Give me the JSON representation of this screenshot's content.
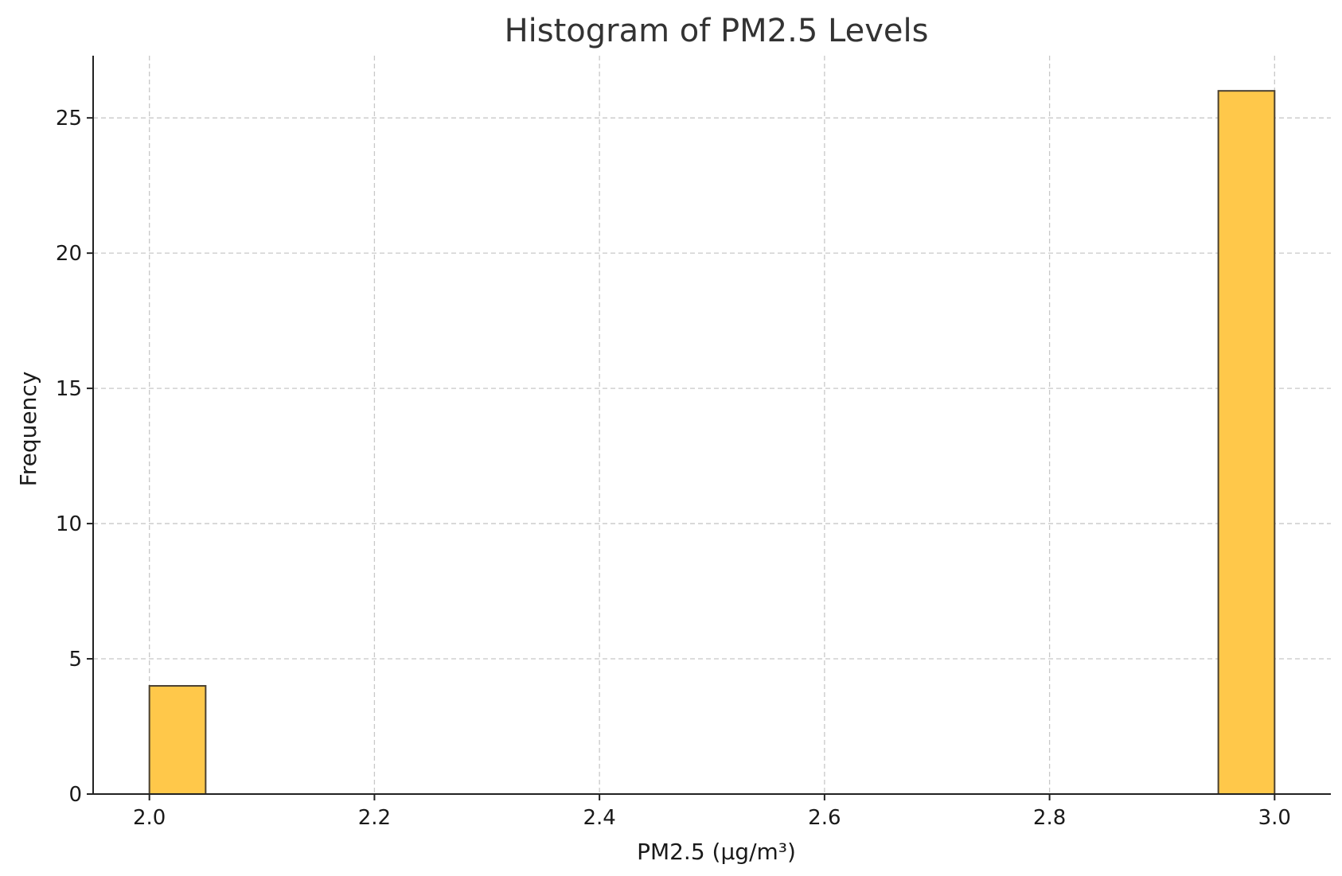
{
  "chart_data": {
    "type": "bar",
    "title": "Histogram of PM2.5 Levels",
    "xlabel": "PM2.5 (µg/m³)",
    "ylabel": "Frequency",
    "xlim": [
      1.95,
      3.05
    ],
    "ylim": [
      0,
      27.3
    ],
    "xticks": [
      2.0,
      2.2,
      2.4,
      2.6,
      2.8,
      3.0
    ],
    "xtick_labels": [
      "2.0",
      "2.2",
      "2.4",
      "2.6",
      "2.8",
      "3.0"
    ],
    "yticks": [
      0,
      5,
      10,
      15,
      20,
      25
    ],
    "ytick_labels": [
      "0",
      "5",
      "10",
      "15",
      "20",
      "25"
    ],
    "grid": true,
    "bar_color": "#ffc84a",
    "edge_color": "#4a4030",
    "bins": [
      {
        "start": 2.0,
        "end": 2.05,
        "count": 4
      },
      {
        "start": 2.95,
        "end": 3.0,
        "count": 26
      }
    ]
  }
}
